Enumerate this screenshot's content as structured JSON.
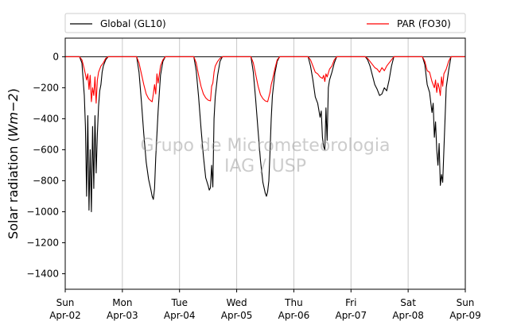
{
  "chart_data": {
    "type": "line",
    "title": "",
    "xlabel": "",
    "ylabel": "Solar radiation ($Wm−2$)",
    "ylabel_parts": {
      "main": "Solar radiation (",
      "math": "Wm−2",
      "close": ")"
    },
    "ylim": [
      -1500,
      120
    ],
    "xlim": [
      "2017-04-02 00:00",
      "2017-04-09 00:00"
    ],
    "y_ticks": [
      0,
      -200,
      -400,
      -600,
      -800,
      -1000,
      -1200,
      -1400
    ],
    "y_tick_labels": [
      "0",
      "−200",
      "−400",
      "−600",
      "−800",
      "−1000",
      "−1200",
      "−1400"
    ],
    "x_ticks": [
      {
        "day": "Sun",
        "date": "Apr-02"
      },
      {
        "day": "Mon",
        "date": "Apr-03"
      },
      {
        "day": "Tue",
        "date": "Apr-04"
      },
      {
        "day": "Wed",
        "date": "Apr-05"
      },
      {
        "day": "Thu",
        "date": "Apr-06"
      },
      {
        "day": "Fri",
        "date": "Apr-07"
      },
      {
        "day": "Sat",
        "date": "Apr-08"
      },
      {
        "day": "Sun",
        "date": "Apr-09"
      }
    ],
    "grid": "vertical-at-days",
    "legend_placement": "top",
    "watermark": [
      "Grupo de Micrometeorologia",
      "IAG / USP"
    ],
    "series": [
      {
        "name": "Global (GL10)",
        "color": "#000000",
        "x": [
          "2017-04-02 00:00",
          "2017-04-02 06:00",
          "2017-04-02 07:00",
          "2017-04-02 08:00",
          "2017-04-02 08:30",
          "2017-04-02 09:00",
          "2017-04-02 09:30",
          "2017-04-02 10:00",
          "2017-04-02 10:30",
          "2017-04-02 11:00",
          "2017-04-02 11:30",
          "2017-04-02 12:00",
          "2017-04-02 12:30",
          "2017-04-02 13:00",
          "2017-04-02 13:30",
          "2017-04-02 14:00",
          "2017-04-02 14:30",
          "2017-04-02 15:00",
          "2017-04-02 15:30",
          "2017-04-02 16:00",
          "2017-04-02 17:00",
          "2017-04-02 18:00",
          "2017-04-03 06:00",
          "2017-04-03 07:00",
          "2017-04-03 08:00",
          "2017-04-03 09:00",
          "2017-04-03 10:00",
          "2017-04-03 11:00",
          "2017-04-03 12:00",
          "2017-04-03 12:30",
          "2017-04-03 13:00",
          "2017-04-03 13:30",
          "2017-04-03 14:00",
          "2017-04-03 15:00",
          "2017-04-03 16:00",
          "2017-04-03 17:00",
          "2017-04-03 18:00",
          "2017-04-04 06:00",
          "2017-04-04 07:00",
          "2017-04-04 08:00",
          "2017-04-04 09:00",
          "2017-04-04 10:00",
          "2017-04-04 11:00",
          "2017-04-04 12:00",
          "2017-04-04 12:30",
          "2017-04-04 13:00",
          "2017-04-04 13:30",
          "2017-04-04 14:00",
          "2017-04-04 14:30",
          "2017-04-04 15:00",
          "2017-04-04 16:00",
          "2017-04-04 17:00",
          "2017-04-04 18:00",
          "2017-04-05 06:00",
          "2017-04-05 07:00",
          "2017-04-05 08:00",
          "2017-04-05 09:00",
          "2017-04-05 10:00",
          "2017-04-05 11:00",
          "2017-04-05 12:00",
          "2017-04-05 12:30",
          "2017-04-05 13:00",
          "2017-04-05 13:30",
          "2017-04-05 14:00",
          "2017-04-05 14:30",
          "2017-04-05 15:00",
          "2017-04-05 16:00",
          "2017-04-05 17:00",
          "2017-04-05 18:00",
          "2017-04-06 06:00",
          "2017-04-06 07:00",
          "2017-04-06 08:00",
          "2017-04-06 09:00",
          "2017-04-06 10:00",
          "2017-04-06 11:00",
          "2017-04-06 11:30",
          "2017-04-06 12:00",
          "2017-04-06 12:30",
          "2017-04-06 13:00",
          "2017-04-06 13:30",
          "2017-04-06 14:00",
          "2017-04-06 14:30",
          "2017-04-06 15:00",
          "2017-04-06 16:00",
          "2017-04-06 17:00",
          "2017-04-06 18:00",
          "2017-04-07 06:00",
          "2017-04-07 07:00",
          "2017-04-07 08:00",
          "2017-04-07 09:00",
          "2017-04-07 10:00",
          "2017-04-07 11:00",
          "2017-04-07 12:00",
          "2017-04-07 13:00",
          "2017-04-07 14:00",
          "2017-04-07 15:00",
          "2017-04-07 16:00",
          "2017-04-07 17:00",
          "2017-04-07 18:00",
          "2017-04-08 06:00",
          "2017-04-08 07:00",
          "2017-04-08 08:00",
          "2017-04-08 09:00",
          "2017-04-08 10:00",
          "2017-04-08 10:30",
          "2017-04-08 11:00",
          "2017-04-08 11:30",
          "2017-04-08 12:00",
          "2017-04-08 12:30",
          "2017-04-08 13:00",
          "2017-04-08 13:30",
          "2017-04-08 14:00",
          "2017-04-08 14:30",
          "2017-04-08 15:00",
          "2017-04-08 16:00",
          "2017-04-08 17:00",
          "2017-04-08 18:00",
          "2017-04-09 00:00"
        ],
        "y": [
          0,
          0,
          -40,
          -250,
          -450,
          -900,
          -380,
          -990,
          -600,
          -1000,
          -450,
          -850,
          -380,
          -750,
          -500,
          -320,
          -220,
          -180,
          -100,
          -60,
          -20,
          0,
          0,
          -100,
          -290,
          -500,
          -680,
          -790,
          -860,
          -900,
          -920,
          -850,
          -650,
          -350,
          -120,
          -30,
          0,
          0,
          -90,
          -260,
          -460,
          -640,
          -780,
          -830,
          -860,
          -845,
          -700,
          -840,
          -400,
          -260,
          -120,
          -30,
          0,
          0,
          -100,
          -280,
          -480,
          -670,
          -810,
          -880,
          -900,
          -870,
          -800,
          -610,
          -400,
          -250,
          -110,
          -30,
          0,
          0,
          -60,
          -150,
          -260,
          -300,
          -390,
          -350,
          -520,
          -580,
          -600,
          -330,
          -540,
          -200,
          -150,
          -100,
          -40,
          0,
          0,
          -20,
          -60,
          -120,
          -180,
          -210,
          -250,
          -240,
          -200,
          -220,
          -150,
          -60,
          0,
          0,
          -50,
          -180,
          -230,
          -360,
          -300,
          -520,
          -420,
          -600,
          -700,
          -560,
          -830,
          -760,
          -810,
          -600,
          -200,
          -90,
          0,
          0
        ]
      },
      {
        "name": "PAR (FO30)",
        "color": "#ff0000",
        "x": [
          "2017-04-02 00:00",
          "2017-04-02 06:00",
          "2017-04-02 07:00",
          "2017-04-02 08:00",
          "2017-04-02 09:00",
          "2017-04-02 09:30",
          "2017-04-02 10:00",
          "2017-04-02 10:30",
          "2017-04-02 11:00",
          "2017-04-02 11:30",
          "2017-04-02 12:00",
          "2017-04-02 12:30",
          "2017-04-02 13:00",
          "2017-04-02 13:30",
          "2017-04-02 14:00",
          "2017-04-02 15:00",
          "2017-04-02 16:00",
          "2017-04-02 17:00",
          "2017-04-02 18:00",
          "2017-04-03 06:00",
          "2017-04-03 07:00",
          "2017-04-03 08:00",
          "2017-04-03 09:00",
          "2017-04-03 10:00",
          "2017-04-03 11:00",
          "2017-04-03 12:00",
          "2017-04-03 12:30",
          "2017-04-03 13:00",
          "2017-04-03 13:30",
          "2017-04-03 14:00",
          "2017-04-03 14:30",
          "2017-04-03 15:00",
          "2017-04-03 16:00",
          "2017-04-03 17:00",
          "2017-04-03 18:00",
          "2017-04-04 06:00",
          "2017-04-04 07:00",
          "2017-04-04 08:00",
          "2017-04-04 09:00",
          "2017-04-04 10:00",
          "2017-04-04 11:00",
          "2017-04-04 12:00",
          "2017-04-04 13:00",
          "2017-04-04 13:30",
          "2017-04-04 14:00",
          "2017-04-04 14:30",
          "2017-04-04 15:00",
          "2017-04-04 16:00",
          "2017-04-04 17:00",
          "2017-04-04 18:00",
          "2017-04-05 06:00",
          "2017-04-05 07:00",
          "2017-04-05 08:00",
          "2017-04-05 09:00",
          "2017-04-05 10:00",
          "2017-04-05 11:00",
          "2017-04-05 12:00",
          "2017-04-05 13:00",
          "2017-04-05 13:30",
          "2017-04-05 14:00",
          "2017-04-05 14:30",
          "2017-04-05 15:00",
          "2017-04-05 16:00",
          "2017-04-05 17:00",
          "2017-04-05 18:00",
          "2017-04-06 06:00",
          "2017-04-06 07:00",
          "2017-04-06 08:00",
          "2017-04-06 09:00",
          "2017-04-06 10:00",
          "2017-04-06 11:00",
          "2017-04-06 12:00",
          "2017-04-06 12:30",
          "2017-04-06 13:00",
          "2017-04-06 13:30",
          "2017-04-06 14:00",
          "2017-04-06 15:00",
          "2017-04-06 16:00",
          "2017-04-06 17:00",
          "2017-04-06 18:00",
          "2017-04-07 06:00",
          "2017-04-07 07:00",
          "2017-04-07 08:00",
          "2017-04-07 09:00",
          "2017-04-07 10:00",
          "2017-04-07 11:00",
          "2017-04-07 12:00",
          "2017-04-07 13:00",
          "2017-04-07 14:00",
          "2017-04-07 15:00",
          "2017-04-07 16:00",
          "2017-04-07 17:00",
          "2017-04-07 18:00",
          "2017-04-08 06:00",
          "2017-04-08 07:00",
          "2017-04-08 08:00",
          "2017-04-08 09:00",
          "2017-04-08 10:00",
          "2017-04-08 11:00",
          "2017-04-08 11:30",
          "2017-04-08 12:00",
          "2017-04-08 12:30",
          "2017-04-08 13:00",
          "2017-04-08 13:30",
          "2017-04-08 14:00",
          "2017-04-08 14:30",
          "2017-04-08 15:00",
          "2017-04-08 16:00",
          "2017-04-08 17:00",
          "2017-04-08 18:00",
          "2017-04-09 00:00"
        ],
        "y": [
          0,
          0,
          -20,
          -80,
          -150,
          -110,
          -210,
          -120,
          -290,
          -200,
          -250,
          -130,
          -300,
          -150,
          -100,
          -60,
          -40,
          -10,
          0,
          0,
          -40,
          -110,
          -180,
          -240,
          -270,
          -285,
          -290,
          -240,
          -180,
          -240,
          -110,
          -170,
          -60,
          -20,
          0,
          0,
          -40,
          -120,
          -190,
          -240,
          -265,
          -280,
          -285,
          -190,
          -170,
          -100,
          -60,
          -30,
          -10,
          0,
          0,
          -40,
          -115,
          -190,
          -245,
          -270,
          -285,
          -290,
          -260,
          -230,
          -180,
          -150,
          -80,
          -20,
          0,
          0,
          -20,
          -60,
          -100,
          -110,
          -130,
          -140,
          -120,
          -160,
          -110,
          -130,
          -80,
          -60,
          -20,
          0,
          0,
          -10,
          -30,
          -50,
          -70,
          -80,
          -100,
          -70,
          -90,
          -60,
          -40,
          -20,
          0,
          0,
          -30,
          -90,
          -100,
          -160,
          -200,
          -150,
          -230,
          -170,
          -200,
          -250,
          -130,
          -190,
          -110,
          -80,
          -30,
          0,
          0
        ]
      }
    ]
  }
}
